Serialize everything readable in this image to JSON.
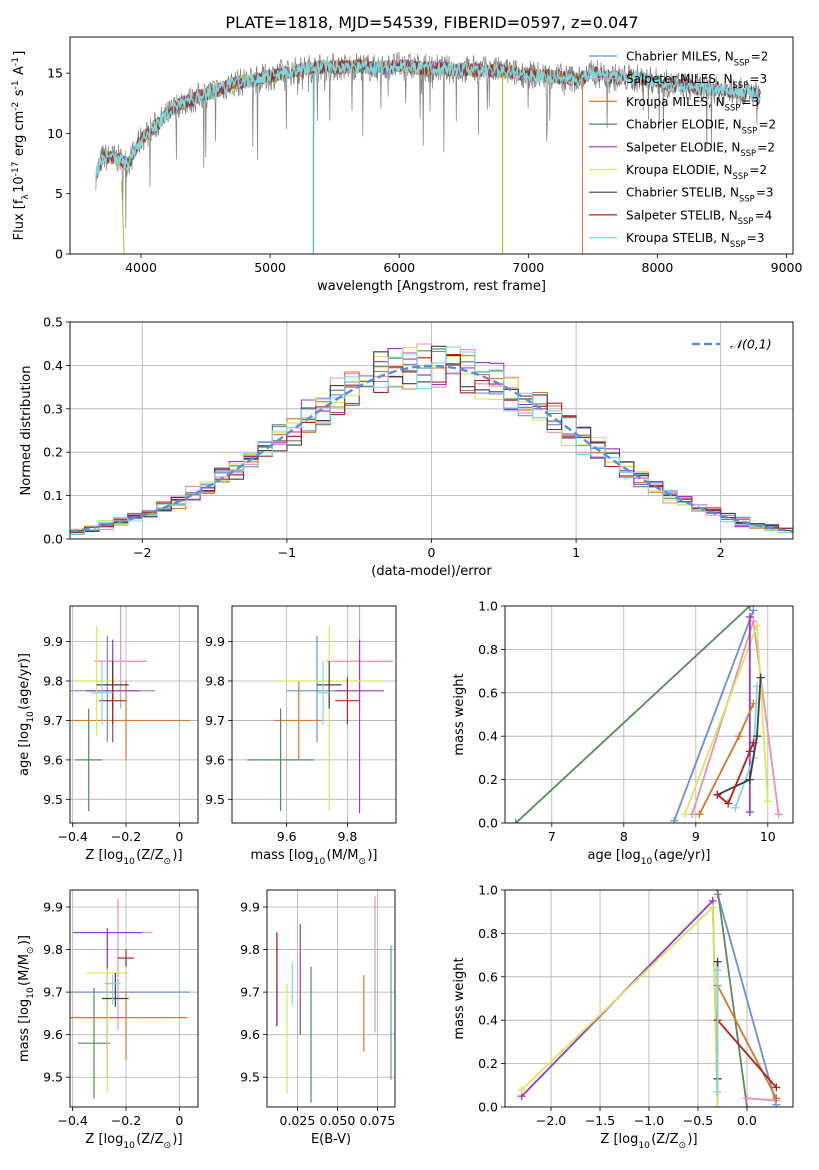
{
  "figure": {
    "title": "PLATE=1818, MJD=54539, FIBERID=0597, z=0.047"
  },
  "chart_data": [
    {
      "id": "spectrum",
      "type": "line",
      "xlabel": "wavelength [Angstrom, rest frame]",
      "ylabel": "Flux [f$_\\lambda$10$^{-17}$ erg cm$^{-2}$ s$^{-1}$ A$^{-1}$]",
      "xlim": [
        3450,
        9050
      ],
      "ylim": [
        0,
        18
      ],
      "xticks": [
        4000,
        5000,
        6000,
        7000,
        8000,
        9000
      ],
      "yticks": [
        0,
        5,
        10,
        15
      ],
      "grid": false,
      "legend_position": "right",
      "data_shape": {
        "x": [
          3650,
          3700,
          3800,
          3900,
          4000,
          4100,
          4200,
          4300,
          4400,
          4500,
          4600,
          4700,
          4800,
          4900,
          5000,
          5100,
          5200,
          5300,
          5400,
          5500,
          5600,
          5700,
          5800,
          5900,
          6000,
          6100,
          6200,
          6300,
          6400,
          6500,
          6600,
          6700,
          6800,
          6900,
          7000,
          7100,
          7200,
          7300,
          7400
        ],
        "y": [
          6.5,
          8.0,
          8.0,
          7.5,
          9.5,
          10.5,
          11.5,
          12.5,
          12.8,
          13.3,
          13.6,
          14.1,
          14.3,
          14.5,
          14.7,
          15.0,
          15.2,
          15.4,
          15.5,
          15.5,
          15.5,
          15.6,
          15.4,
          15.5,
          15.6,
          15.5,
          15.4,
          15.4,
          15.3,
          15.3,
          15.3,
          15.2,
          15.2,
          15.0,
          14.9,
          14.8,
          14.7,
          14.6,
          14.5
        ]
      },
      "observed": {
        "x": [
          3650,
          3700,
          3800,
          3900,
          4000,
          4100,
          4200,
          4300,
          4400,
          4500,
          4600,
          4700,
          4800,
          4900,
          5000,
          5100,
          5200,
          5300,
          5400,
          5500,
          5600,
          5700,
          5800,
          5900,
          6000,
          6100,
          6200,
          6300,
          6400,
          6500,
          6600,
          6700,
          6800,
          6900,
          7000,
          7100,
          7200,
          7300,
          7400,
          7500,
          7600,
          7700,
          7800,
          7900,
          8000,
          8100,
          8200,
          8300,
          8400,
          8500,
          8600,
          8700,
          8800
        ],
        "y": [
          6.5,
          8.0,
          8.0,
          7.5,
          9.5,
          10.5,
          11.5,
          12.5,
          12.8,
          13.3,
          13.6,
          14.1,
          14.3,
          14.5,
          14.7,
          15.0,
          15.2,
          15.4,
          15.5,
          15.5,
          15.5,
          15.6,
          15.4,
          15.5,
          15.6,
          15.5,
          15.4,
          15.4,
          15.3,
          15.3,
          15.3,
          15.2,
          15.2,
          15.0,
          14.9,
          14.8,
          14.7,
          14.6,
          14.5,
          15.0,
          14.8,
          14.6,
          14.6,
          14.5,
          14.3,
          14.0,
          14.0,
          13.8,
          13.7,
          13.6,
          13.5,
          13.4,
          13.2
        ]
      },
      "dips": [
        {
          "color": "#4dc3c8",
          "x": 5335
        },
        {
          "color": "#bcbd22",
          "x": 6800
        }
      ],
      "series": [
        {
          "name": "Chabrier MILES, N$_{SSP}$=2",
          "color": "#6b8fd6"
        },
        {
          "name": "Salpeter MILES, N$_{SSP}$=3",
          "color": "#e98fb9"
        },
        {
          "name": "Kroupa MILES, N$_{SSP}$=3",
          "color": "#d9772a"
        },
        {
          "name": "Chabrier ELODIE, N$_{SSP}$=2",
          "color": "#5a8a5e"
        },
        {
          "name": "Salpeter ELODIE, N$_{SSP}$=2",
          "color": "#9b37c9"
        },
        {
          "name": "Kroupa ELODIE, N$_{SSP}$=2",
          "color": "#d8e85a"
        },
        {
          "name": "Chabrier STELIB, N$_{SSP}$=3",
          "color": "#404040"
        },
        {
          "name": "Salpeter STELIB, N$_{SSP}$=4",
          "color": "#b22222"
        },
        {
          "name": "Kroupa STELIB, N$_{SSP}$=3",
          "color": "#7fd8dc"
        }
      ]
    },
    {
      "id": "residuals",
      "type": "line",
      "xlabel": "(data-model)/error",
      "ylabel": "Normed distribution",
      "xlim": [
        -2.5,
        2.5
      ],
      "ylim": [
        0,
        0.5
      ],
      "xticks": [
        -2,
        -1,
        0,
        1,
        2
      ],
      "yticks": [
        0.0,
        0.1,
        0.2,
        0.3,
        0.4,
        0.5
      ],
      "grid": true,
      "legend_position": "top-right",
      "legend": [
        {
          "name": "$\\mathcal{N}(0,1)$",
          "color": "#5b8ed8"
        }
      ],
      "bins_x": [
        -2.5,
        2.5,
        0.1
      ],
      "histogram_colors": [
        "#6b8fd6",
        "#e98fb9",
        "#d9772a",
        "#5a8a5e",
        "#9b37c9",
        "#d8e85a",
        "#404040",
        "#b22222",
        "#7fd8dc"
      ]
    },
    {
      "id": "age-vs-Z",
      "type": "scatter",
      "xlabel": "Z [log$_{10}$(Z/Z$_\\odot$)]",
      "ylabel": "age  [log$_{10}$(age/yr)]",
      "xlim": [
        -0.41,
        0.07
      ],
      "ylim": [
        9.44,
        9.99
      ],
      "xticks": [
        -0.4,
        -0.2,
        0.0
      ],
      "yticks": [
        9.5,
        9.6,
        9.7,
        9.8,
        9.9
      ],
      "grid": true,
      "points": [
        {
          "color": "#6b8fd6",
          "x": -0.27,
          "y": 9.775,
          "xerr": 0.18,
          "yerr": [
            0.13,
            0.14
          ]
        },
        {
          "color": "#e98fb9",
          "x": -0.22,
          "y": 9.85,
          "xerr": 0.1,
          "yerr": [
            0.12,
            0.27
          ]
        },
        {
          "color": "#d9772a",
          "x": -0.2,
          "y": 9.7,
          "xerr": 0.24,
          "yerr": [
            0.1,
            0.1
          ]
        },
        {
          "color": "#5a8a5e",
          "x": -0.34,
          "y": 9.6,
          "xerr": 0.05,
          "yerr": [
            0.13,
            0.13
          ]
        },
        {
          "color": "#9b37c9",
          "x": -0.25,
          "y": 9.775,
          "xerr": 0.1,
          "yerr": [
            0.13,
            0.13
          ]
        },
        {
          "color": "#d8e85a",
          "x": -0.31,
          "y": 9.8,
          "xerr": 0.08,
          "yerr": [
            0.14,
            0.14
          ]
        },
        {
          "color": "#404040",
          "x": -0.25,
          "y": 9.79,
          "xerr": 0.06,
          "yerr": [
            0.06,
            0.06
          ]
        },
        {
          "color": "#b22222",
          "x": -0.25,
          "y": 9.75,
          "xerr": 0.05,
          "yerr": [
            0.06,
            0.06
          ]
        },
        {
          "color": "#7fd8dc",
          "x": -0.29,
          "y": 9.77,
          "xerr": 0.04,
          "yerr": [
            0.08,
            0.08
          ]
        }
      ]
    },
    {
      "id": "age-vs-mass",
      "type": "scatter",
      "xlabel": "mass [log$_{10}$(M/M$_\\odot$)]",
      "ylabel": "",
      "xlim": [
        9.42,
        9.96
      ],
      "ylim": [
        9.44,
        9.99
      ],
      "xticks": [
        9.6,
        9.8
      ],
      "yticks": [
        9.5,
        9.6,
        9.7,
        9.8,
        9.9
      ],
      "grid": true,
      "points": [
        {
          "color": "#6b8fd6",
          "x": 9.7,
          "y": 9.775,
          "xerr": 0.1,
          "yerr": [
            0.13,
            0.14
          ]
        },
        {
          "color": "#e98fb9",
          "x": 9.84,
          "y": 9.85,
          "xerr": 0.11,
          "yerr": [
            0.12,
            0.27
          ]
        },
        {
          "color": "#d9772a",
          "x": 9.64,
          "y": 9.7,
          "xerr": 0.08,
          "yerr": [
            0.1,
            0.1
          ]
        },
        {
          "color": "#5a8a5e",
          "x": 9.58,
          "y": 9.6,
          "xerr": 0.11,
          "yerr": [
            0.13,
            0.13
          ]
        },
        {
          "color": "#9b37c9",
          "x": 9.84,
          "y": 9.775,
          "xerr": 0.08,
          "yerr": [
            0.31,
            0.13
          ]
        },
        {
          "color": "#d8e85a",
          "x": 9.74,
          "y": 9.8,
          "xerr": 0.17,
          "yerr": [
            0.33,
            0.14
          ]
        },
        {
          "color": "#404040",
          "x": 9.74,
          "y": 9.79,
          "xerr": 0.04,
          "yerr": [
            0.06,
            0.06
          ]
        },
        {
          "color": "#b22222",
          "x": 9.8,
          "y": 9.75,
          "xerr": 0.04,
          "yerr": [
            0.06,
            0.06
          ]
        },
        {
          "color": "#7fd8dc",
          "x": 9.72,
          "y": 9.77,
          "xerr": 0.02,
          "yerr": [
            0.08,
            0.08
          ]
        }
      ]
    },
    {
      "id": "weight-vs-age",
      "type": "line",
      "xlabel": "age  [log$_{10}$(age/yr)]",
      "ylabel": "mass weight",
      "xlim": [
        6.35,
        10.35
      ],
      "ylim": [
        0,
        1
      ],
      "xticks": [
        7,
        8,
        9,
        10
      ],
      "yticks": [
        0.0,
        0.2,
        0.4,
        0.6,
        0.8,
        1.0
      ],
      "grid": true,
      "series": [
        {
          "color": "#5a8a5e",
          "x": [
            6.5,
            9.75
          ],
          "y": [
            0.0,
            1.0
          ]
        },
        {
          "color": "#6b8fd6",
          "x": [
            8.7,
            9.8
          ],
          "y": [
            0.01,
            0.98
          ]
        },
        {
          "color": "#e98fb9",
          "x": [
            8.95,
            9.8,
            10.15
          ],
          "y": [
            0.04,
            0.93,
            0.04
          ]
        },
        {
          "color": "#d8e85a",
          "x": [
            8.85,
            9.85,
            10.0
          ],
          "y": [
            0.04,
            0.91,
            0.1
          ]
        },
        {
          "color": "#9b37c9",
          "x": [
            9.75,
            9.75
          ],
          "y": [
            0.05,
            0.95
          ]
        },
        {
          "color": "#d9772a",
          "x": [
            9.05,
            9.6,
            9.8
          ],
          "y": [
            0.04,
            0.4,
            0.55
          ]
        },
        {
          "color": "#7fd8dc",
          "x": [
            9.55,
            9.8,
            9.85
          ],
          "y": [
            0.07,
            0.3,
            0.63
          ]
        },
        {
          "color": "#404040",
          "x": [
            9.3,
            9.75,
            9.85,
            9.9
          ],
          "y": [
            0.13,
            0.2,
            0.4,
            0.67
          ]
        },
        {
          "color": "#b22222",
          "x": [
            9.3,
            9.45,
            9.75,
            9.8
          ],
          "y": [
            0.13,
            0.09,
            0.33,
            0.37
          ]
        }
      ]
    },
    {
      "id": "mass-vs-Z",
      "type": "scatter",
      "xlabel": "Z [log$_{10}$(Z/Z$_\\odot$)]",
      "ylabel": "mass [log$_{10}$(M/M$_\\odot$)]",
      "xlim": [
        -0.41,
        0.07
      ],
      "ylim": [
        9.43,
        9.94
      ],
      "xticks": [
        -0.4,
        -0.2,
        0.0
      ],
      "yticks": [
        9.5,
        9.6,
        9.7,
        9.8,
        9.9
      ],
      "grid": true,
      "points": [
        {
          "color": "#6b8fd6",
          "x": -0.27,
          "y": 9.7,
          "xerr": 0.31,
          "yerr": [
            0.2,
            0.14
          ]
        },
        {
          "color": "#e98fb9",
          "x": -0.23,
          "y": 9.84,
          "xerr": 0.13,
          "yerr": [
            0.23,
            0.08
          ]
        },
        {
          "color": "#d9772a",
          "x": -0.2,
          "y": 9.64,
          "xerr": 0.23,
          "yerr": [
            0.1,
            0.06
          ]
        },
        {
          "color": "#5a8a5e",
          "x": -0.32,
          "y": 9.58,
          "xerr": 0.06,
          "yerr": [
            0.13,
            0.13
          ]
        },
        {
          "color": "#9b37c9",
          "x": -0.27,
          "y": 9.84,
          "xerr": 0.13,
          "yerr": [
            0.27,
            0.01
          ]
        },
        {
          "color": "#d8e85a",
          "x": -0.27,
          "y": 9.745,
          "xerr": 0.08,
          "yerr": [
            0.28,
            0.01
          ]
        },
        {
          "color": "#404040",
          "x": -0.24,
          "y": 9.685,
          "xerr": 0.05,
          "yerr": [
            0.02,
            0.06
          ]
        },
        {
          "color": "#b22222",
          "x": -0.2,
          "y": 9.78,
          "xerr": 0.03,
          "yerr": [
            0.02,
            0.02
          ]
        },
        {
          "color": "#7fd8dc",
          "x": -0.25,
          "y": 9.72,
          "xerr": 0.03,
          "yerr": [
            0.05,
            0.02
          ]
        }
      ]
    },
    {
      "id": "mass-vs-EBV",
      "type": "scatter",
      "xlabel": "E(B-V)",
      "ylabel": "",
      "xlim": [
        0.006,
        0.086
      ],
      "ylim": [
        9.43,
        9.94
      ],
      "xticks": [
        0.025,
        0.05,
        0.075
      ],
      "xticklabels": [
        "0.025",
        "0.050",
        "0.075"
      ],
      "yticks": [
        9.5,
        9.6,
        9.7,
        9.8,
        9.9
      ],
      "grid": true,
      "points": [
        {
          "color": "#6b8fd6",
          "x": 0.0835,
          "y": 9.65,
          "yerr": [
            0.155,
            0.16
          ]
        },
        {
          "color": "#e98fb9",
          "x": 0.0735,
          "y": 9.765,
          "yerr": [
            0.16,
            0.16
          ]
        },
        {
          "color": "#d9772a",
          "x": 0.0665,
          "y": 9.65,
          "yerr": [
            0.09,
            0.09
          ]
        },
        {
          "color": "#5a8a5e",
          "x": 0.0335,
          "y": 9.6,
          "yerr": [
            0.16,
            0.16
          ]
        },
        {
          "color": "#9b37c9",
          "x": 0.0268,
          "y": 9.73,
          "yerr": [
            0.13,
            0.13
          ]
        },
        {
          "color": "#d8e85a",
          "x": 0.0185,
          "y": 9.59,
          "yerr": [
            0.13,
            0.13
          ]
        },
        {
          "color": "#404040",
          "x": 0.0122,
          "y": 9.73,
          "yerr": [
            0.11,
            0.11
          ]
        },
        {
          "color": "#b22222",
          "x": 0.0122,
          "y": 9.73,
          "yerr": [
            0.11,
            0.11
          ]
        },
        {
          "color": "#7fd8dc",
          "x": 0.0218,
          "y": 9.72,
          "yerr": [
            0.05,
            0.05
          ]
        }
      ]
    },
    {
      "id": "weight-vs-Z",
      "type": "line",
      "xlabel": "Z [log$_{10}$(Z/Z$_\\odot$)]",
      "ylabel": "mass weight",
      "xlim": [
        -2.47,
        0.47
      ],
      "ylim": [
        0,
        1
      ],
      "xticks": [
        -2.0,
        -1.5,
        -1.0,
        -0.5,
        0.0
      ],
      "yticks": [
        0.0,
        0.2,
        0.4,
        0.6,
        0.8,
        1.0
      ],
      "grid": true,
      "series": [
        {
          "color": "#9b37c9",
          "x": [
            -2.3,
            -0.35,
            -0.3
          ],
          "y": [
            0.05,
            0.95,
            0.0
          ]
        },
        {
          "color": "#d8e85a",
          "x": [
            -2.3,
            -0.35,
            -0.3
          ],
          "y": [
            0.08,
            0.92,
            0.0
          ]
        },
        {
          "color": "#6b8fd6",
          "x": [
            -0.3,
            0.3
          ],
          "y": [
            0.98,
            0.01
          ]
        },
        {
          "color": "#5a8a5e",
          "x": [
            -0.3,
            0.0
          ],
          "y": [
            1.0,
            0.0
          ]
        },
        {
          "color": "#e98fb9",
          "x": [
            0.0,
            0.3
          ],
          "y": [
            0.04,
            0.03
          ]
        },
        {
          "color": "#d9772a",
          "x": [
            -0.3,
            0.3
          ],
          "y": [
            0.56,
            0.04
          ]
        },
        {
          "color": "#b22222",
          "x": [
            -0.3,
            0.3
          ],
          "y": [
            0.4,
            0.09
          ]
        },
        {
          "color": "#404040",
          "x": [
            -0.3,
            -0.3
          ],
          "y": [
            0.13,
            0.67
          ]
        },
        {
          "color": "#7fd8dc",
          "x": [
            -0.3,
            -0.3
          ],
          "y": [
            0.07,
            0.63
          ]
        }
      ]
    }
  ]
}
